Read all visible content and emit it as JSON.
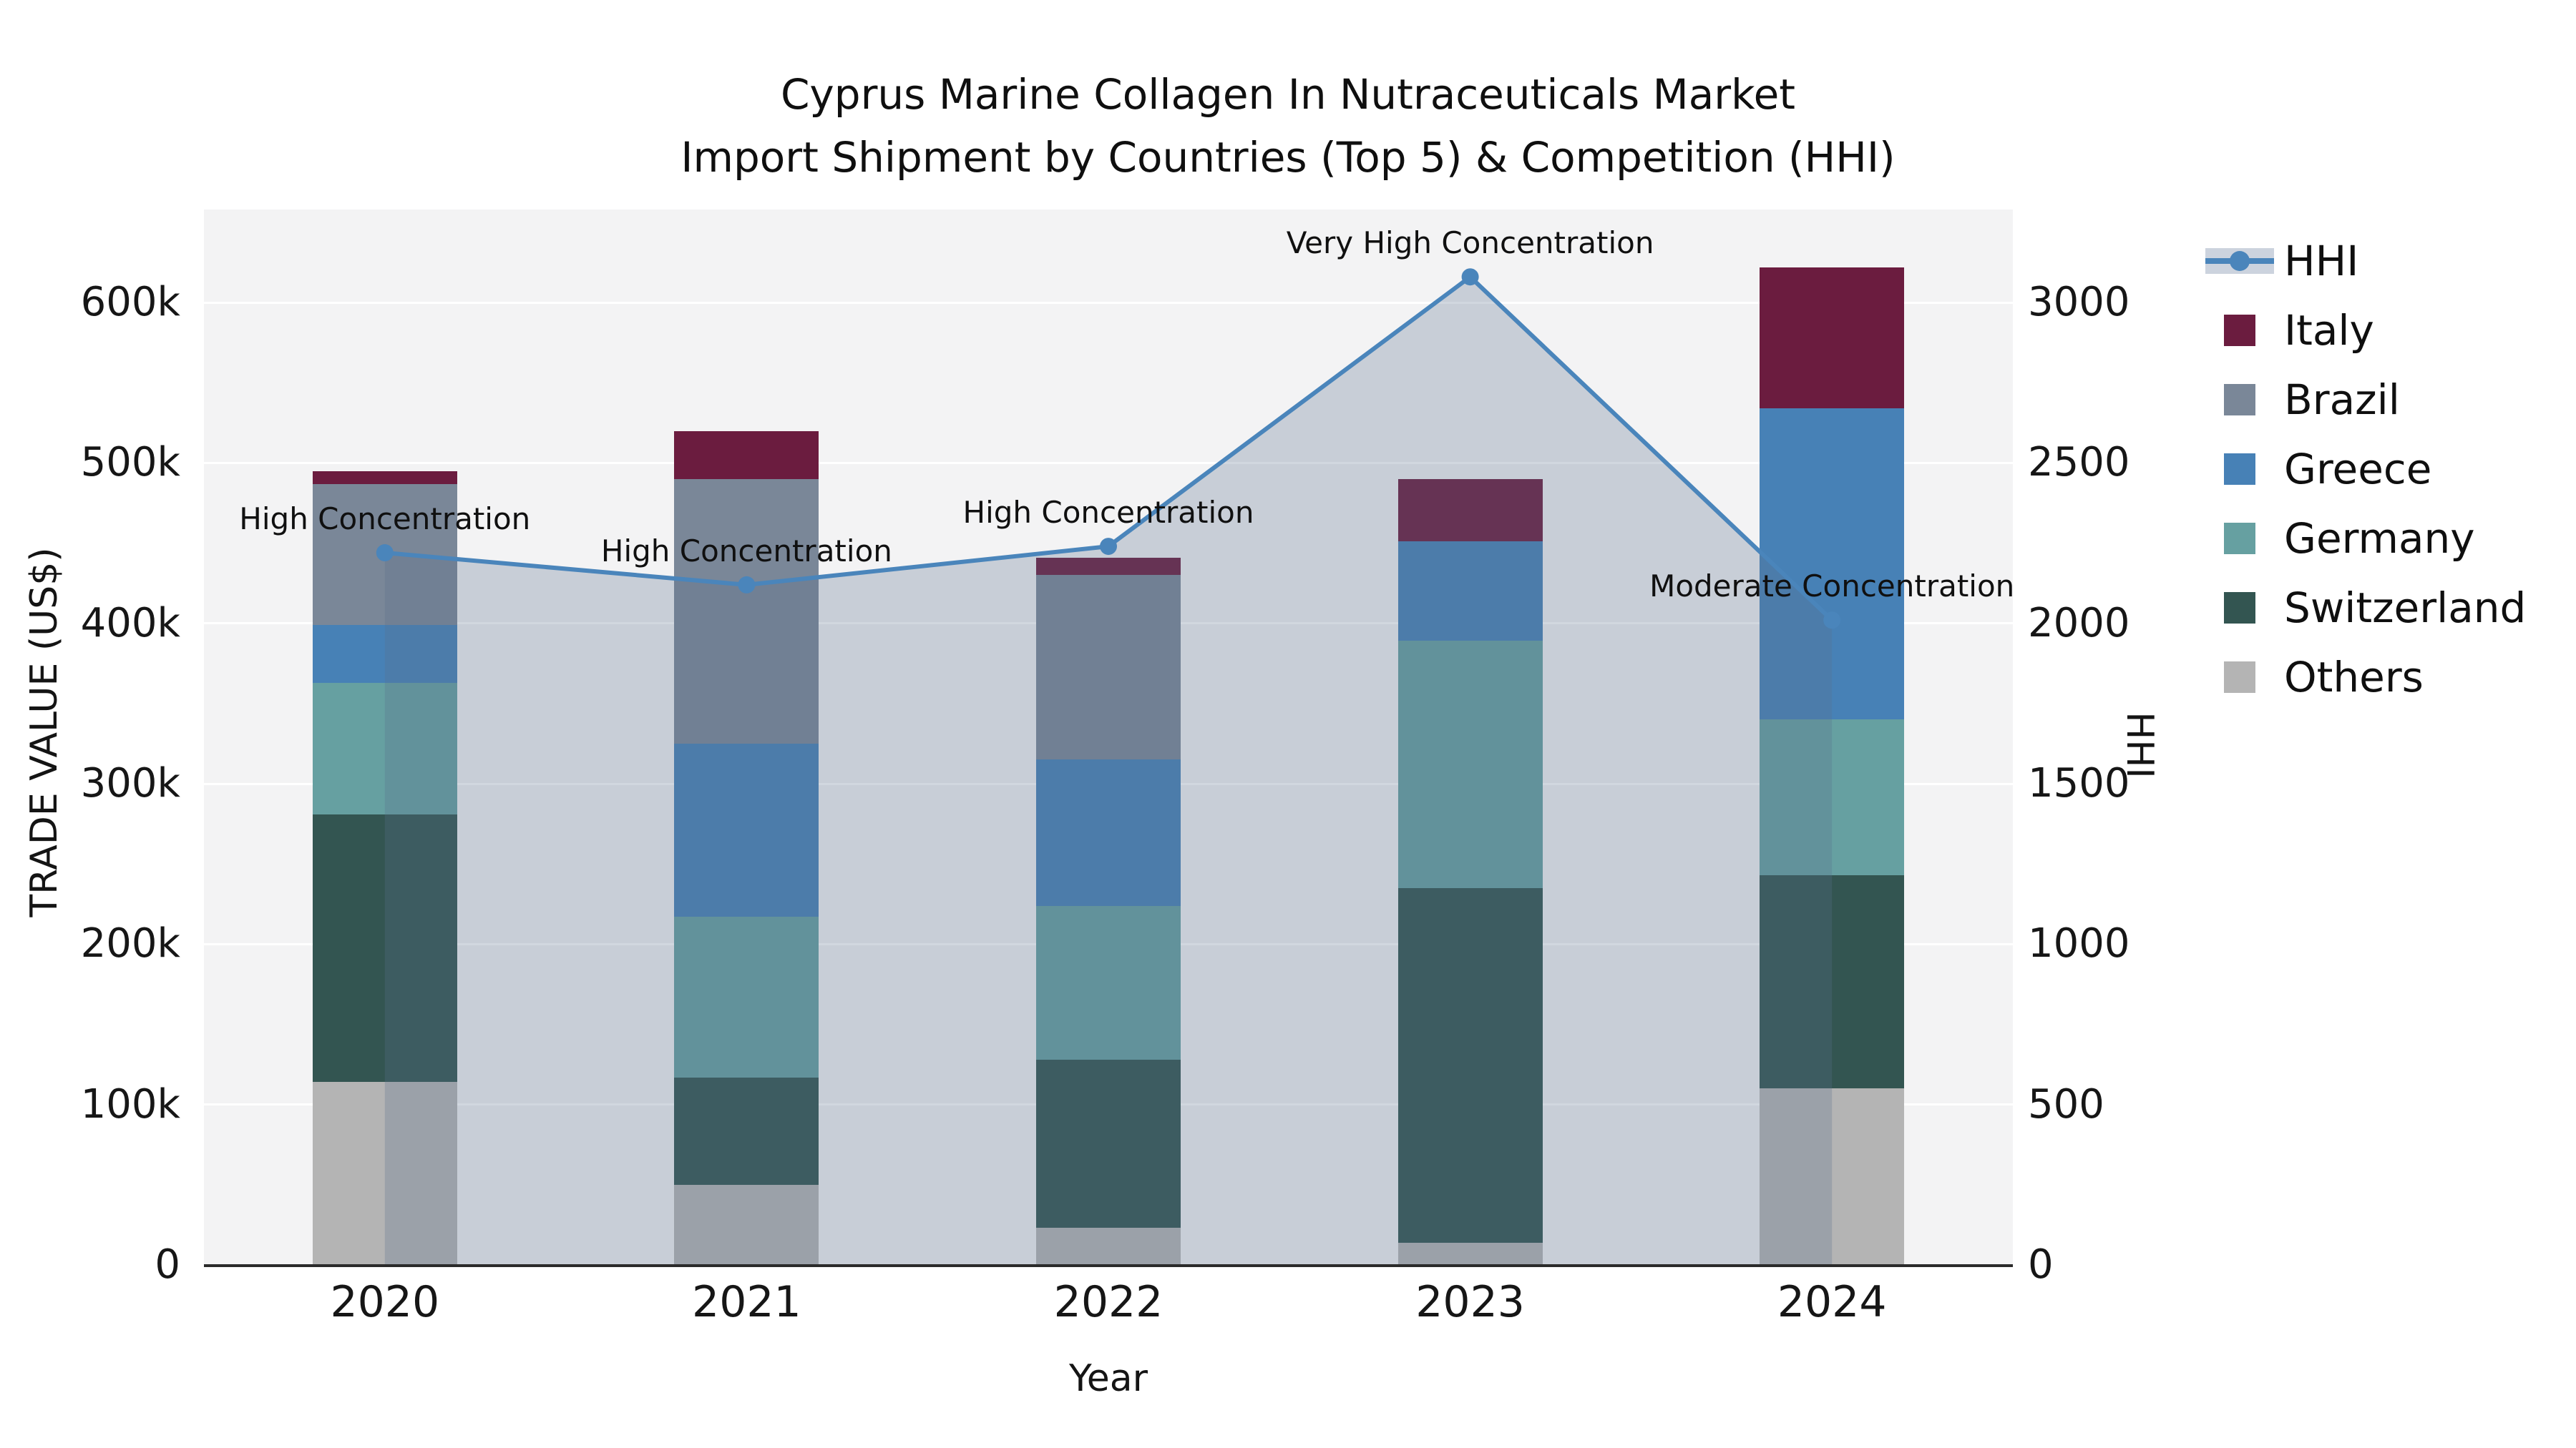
{
  "title": {
    "line1": "Cyprus Marine Collagen In Nutraceuticals Market",
    "line2": "Import Shipment by Countries (Top 5) & Competition (HHI)"
  },
  "colors": {
    "plot_bg": "#f3f3f4",
    "grid": "#ffffff",
    "axis_line": "#2b2b2b",
    "text": "#111111",
    "hhi_line": "#4a85bb",
    "hhi_area": "rgba(90,110,140,0.28)",
    "legend_band": "#ccd3de",
    "italy": "#6b1c3f",
    "brazil": "#7a8798",
    "greece": "#4781b6",
    "germany": "#66a0a1",
    "switzerland": "#335551",
    "others": "#b4b4b4"
  },
  "chart_data": {
    "type": "bar",
    "subtype": "stacked-bars-with-line",
    "categories": [
      "2020",
      "2021",
      "2022",
      "2023",
      "2024"
    ],
    "bar_stack_order_bottom_to_top": [
      "Others",
      "Switzerland",
      "Germany",
      "Greece",
      "Brazil",
      "Italy"
    ],
    "bar_series": [
      {
        "name": "Others",
        "color": "#b4b4b4",
        "values": [
          114000,
          50000,
          23000,
          14000,
          110000
        ]
      },
      {
        "name": "Switzerland",
        "color": "#335551",
        "values": [
          167000,
          67000,
          105000,
          221000,
          133000
        ]
      },
      {
        "name": "Germany",
        "color": "#66a0a1",
        "values": [
          82000,
          100000,
          96000,
          154000,
          97000
        ]
      },
      {
        "name": "Greece",
        "color": "#4781b6",
        "values": [
          36000,
          108000,
          91000,
          62000,
          194000
        ]
      },
      {
        "name": "Brazil",
        "color": "#7a8798",
        "values": [
          88000,
          165000,
          115000,
          0,
          0
        ]
      },
      {
        "name": "Italy",
        "color": "#6b1c3f",
        "values": [
          8000,
          30000,
          11000,
          39000,
          88000
        ]
      }
    ],
    "bar_totals": [
      495000,
      520000,
      441000,
      490000,
      622000
    ],
    "line_series": {
      "name": "HHI",
      "color": "#4a85bb",
      "values": [
        2220,
        2120,
        2240,
        3080,
        2010
      ]
    },
    "annotations": [
      "High Concentration",
      "High Concentration",
      "High Concentration",
      "Very High Concentration",
      "Moderate Concentration"
    ],
    "x_label": "Year",
    "y_left": {
      "label": "TRADE VALUE (US$)",
      "tick_values": [
        0,
        100000,
        200000,
        300000,
        400000,
        500000,
        600000
      ],
      "tick_labels": [
        "0",
        "100k",
        "200k",
        "300k",
        "400k",
        "500k",
        "600k"
      ],
      "max": 658000
    },
    "y_right": {
      "label": "HHI",
      "tick_values": [
        0,
        500,
        1000,
        1500,
        2000,
        2500,
        3000
      ],
      "tick_labels": [
        "0",
        "500",
        "1000",
        "1500",
        "2000",
        "2500",
        "3000"
      ],
      "max": 3290
    },
    "grid": "horizontal-white",
    "legend_position": "right-outside",
    "legend_order": [
      "HHI",
      "Italy",
      "Brazil",
      "Greece",
      "Germany",
      "Switzerland",
      "Others"
    ]
  }
}
